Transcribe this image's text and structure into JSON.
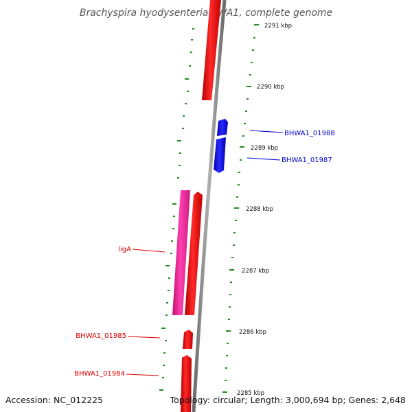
{
  "title": "Brachyspira hyodysenteriae WA1, complete genome",
  "footer": {
    "accession": "Accession: NC_012225",
    "summary": "Topology: circular; Length: 3,000,694 bp; Genes: 2,648"
  },
  "colors": {
    "backbone": "#8a8a8a",
    "tick": "#1f8a1f",
    "forward_gene": "#ff1a1a",
    "reverse_gene": "#1a1aff",
    "rna_gene": "#ff33aa",
    "label_red": "#dd0000",
    "label_blue": "#0000cc"
  },
  "kbp_ticks": [
    "2291 kbp",
    "2290 kbp",
    "2289 kbp",
    "2288 kbp",
    "2287 kbp",
    "2286 kbp",
    "2285 kbp"
  ],
  "gene_labels": [
    {
      "id": "bhwa1-01988",
      "text": "BHWA1_01988",
      "color": "#0000cc"
    },
    {
      "id": "bhwa1-01987",
      "text": "BHWA1_01987",
      "color": "#0000cc"
    },
    {
      "id": "liga",
      "text": "ligA",
      "color": "#dd0000"
    },
    {
      "id": "bhwa1-01985",
      "text": "BHWA1_01985",
      "color": "#dd0000"
    },
    {
      "id": "bhwa1-01984",
      "text": "BHWA1_01984",
      "color": "#dd0000"
    }
  ]
}
